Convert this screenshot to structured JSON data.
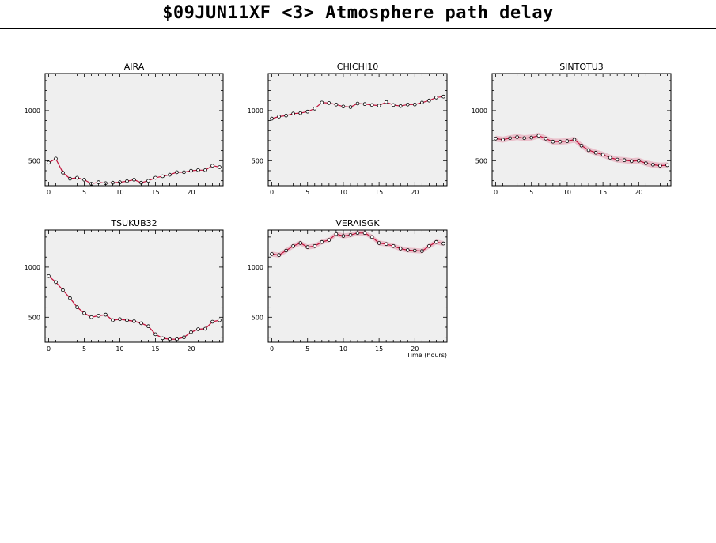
{
  "page": {
    "title": "$09JUN11XF <3>  Atmosphere path delay"
  },
  "colors": {
    "plot_bg": "#efefef",
    "line": "#c0143c",
    "band": "#e8b4c2",
    "marker_fill": "#ffffff",
    "marker_stroke": "#000000"
  },
  "chart_data": [
    {
      "type": "line",
      "title": "AIRA",
      "xlabel": "",
      "xlim": [
        -0.5,
        24.5
      ],
      "ylim": [
        250,
        1370
      ],
      "xticks": [
        0,
        5,
        10,
        15,
        20
      ],
      "yticks": [
        500,
        1000
      ],
      "x": [
        0,
        1,
        2,
        3,
        4,
        5,
        6,
        7,
        8,
        9,
        10,
        11,
        12,
        13,
        14,
        15,
        16,
        17,
        18,
        19,
        20,
        21,
        22,
        23,
        24
      ],
      "y": [
        480,
        520,
        380,
        320,
        330,
        310,
        270,
        285,
        275,
        280,
        285,
        295,
        310,
        280,
        300,
        330,
        345,
        360,
        385,
        385,
        400,
        405,
        405,
        450,
        435
      ],
      "band": 0
    },
    {
      "type": "line",
      "title": "CHICHI10",
      "xlabel": "",
      "xlim": [
        -0.5,
        24.5
      ],
      "ylim": [
        250,
        1370
      ],
      "xticks": [
        0,
        5,
        10,
        15,
        20
      ],
      "yticks": [
        500,
        1000
      ],
      "x": [
        0,
        1,
        2,
        3,
        4,
        5,
        6,
        7,
        8,
        9,
        10,
        11,
        12,
        13,
        14,
        15,
        16,
        17,
        18,
        19,
        20,
        21,
        22,
        23,
        24
      ],
      "y": [
        920,
        940,
        950,
        970,
        975,
        990,
        1020,
        1080,
        1075,
        1060,
        1040,
        1035,
        1070,
        1065,
        1055,
        1050,
        1085,
        1055,
        1045,
        1060,
        1060,
        1080,
        1100,
        1130,
        1140
      ],
      "band": 0
    },
    {
      "type": "line",
      "title": "SINTOTU3",
      "xlabel": "",
      "xlim": [
        -0.5,
        24.5
      ],
      "ylim": [
        250,
        1370
      ],
      "xticks": [
        0,
        5,
        10,
        15,
        20
      ],
      "yticks": [
        500,
        1000
      ],
      "x": [
        0,
        1,
        2,
        3,
        4,
        5,
        6,
        7,
        8,
        9,
        10,
        11,
        12,
        13,
        14,
        15,
        16,
        17,
        18,
        19,
        20,
        21,
        22,
        23,
        24
      ],
      "y": [
        720,
        710,
        725,
        735,
        725,
        730,
        750,
        720,
        690,
        690,
        695,
        710,
        650,
        605,
        580,
        560,
        530,
        510,
        505,
        495,
        500,
        475,
        460,
        450,
        455
      ],
      "band": 30
    },
    {
      "type": "line",
      "title": "TSUKUB32",
      "xlabel": "",
      "xlim": [
        -0.5,
        24.5
      ],
      "ylim": [
        250,
        1370
      ],
      "xticks": [
        0,
        5,
        10,
        15,
        20
      ],
      "yticks": [
        500,
        1000
      ],
      "x": [
        0,
        1,
        2,
        3,
        4,
        5,
        6,
        7,
        8,
        9,
        10,
        11,
        12,
        13,
        14,
        15,
        16,
        17,
        18,
        19,
        20,
        21,
        22,
        23,
        24
      ],
      "y": [
        910,
        850,
        770,
        690,
        600,
        540,
        500,
        515,
        525,
        470,
        480,
        470,
        460,
        440,
        410,
        330,
        290,
        280,
        280,
        300,
        350,
        380,
        385,
        455,
        470
      ],
      "band": 8
    },
    {
      "type": "line",
      "title": "VERAISGK",
      "xlabel": "Time (hours)",
      "xlim": [
        -0.5,
        24.5
      ],
      "ylim": [
        250,
        1370
      ],
      "xticks": [
        0,
        5,
        10,
        15,
        20
      ],
      "yticks": [
        500,
        1000
      ],
      "x": [
        0,
        1,
        2,
        3,
        4,
        5,
        6,
        7,
        8,
        9,
        10,
        11,
        12,
        13,
        14,
        15,
        16,
        17,
        18,
        19,
        20,
        21,
        22,
        23,
        24
      ],
      "y": [
        1130,
        1120,
        1165,
        1210,
        1240,
        1200,
        1210,
        1250,
        1270,
        1330,
        1310,
        1320,
        1340,
        1340,
        1300,
        1240,
        1230,
        1210,
        1185,
        1170,
        1165,
        1160,
        1210,
        1250,
        1235
      ],
      "band": 25
    }
  ]
}
